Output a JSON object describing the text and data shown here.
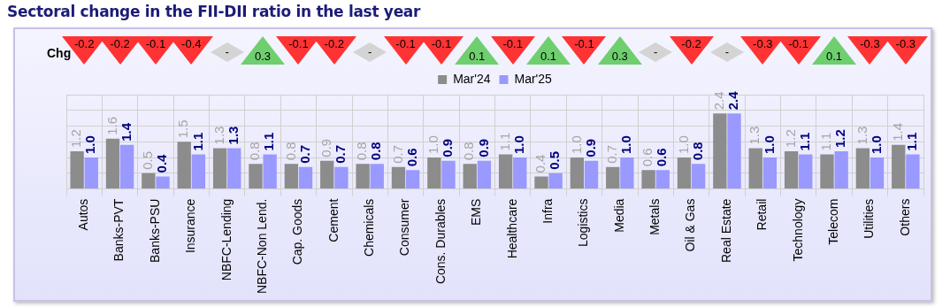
{
  "chart_data": {
    "type": "bar",
    "title": "Sectoral change in the FII-DII ratio in the last year",
    "categories": [
      "Autos",
      "Banks-PVT",
      "Banks-PSU",
      "Insurance",
      "NBFC-Lending",
      "NBFC-Non Lend.",
      "Cap. Goods",
      "Cement",
      "Chemicals",
      "Consumer",
      "Cons. Durables",
      "EMS",
      "Healthcare",
      "Infra",
      "Logistics",
      "Media",
      "Metals",
      "Oil & Gas",
      "Real Estate",
      "Retail",
      "Technology",
      "Telecom",
      "Utilities",
      "Others"
    ],
    "series": [
      {
        "name": "Mar'24",
        "color": "#8c8c8c",
        "values": [
          1.2,
          1.6,
          0.5,
          1.5,
          1.3,
          0.8,
          0.8,
          0.9,
          0.8,
          0.7,
          1.0,
          0.8,
          1.1,
          0.4,
          1.0,
          0.7,
          0.6,
          1.0,
          2.4,
          1.3,
          1.2,
          1.1,
          1.3,
          1.4
        ],
        "value_labels": [
          "1.2",
          "1.6",
          "0.5",
          "1.5",
          "1.3",
          "0.8",
          "0.8",
          "0.9",
          "0.8",
          "0.7",
          "1.0",
          "0.8",
          "1.1",
          "0.4",
          "1.0",
          "0.7",
          "0.6",
          "1.0",
          "2.4",
          "1.3",
          "1.2",
          "1.1",
          "1.3",
          "1.4"
        ]
      },
      {
        "name": "Mar'25",
        "color": "#9999ff",
        "values": [
          1.0,
          1.4,
          0.4,
          1.1,
          1.3,
          1.1,
          0.7,
          0.7,
          0.8,
          0.6,
          0.9,
          0.9,
          1.0,
          0.5,
          0.9,
          1.0,
          0.6,
          0.8,
          2.4,
          1.0,
          1.1,
          1.2,
          1.0,
          1.1
        ],
        "value_labels": [
          "1.0",
          "1.4",
          "0.4",
          "1.1",
          "1.3",
          "1.1",
          "0.7",
          "0.7",
          "0.8",
          "0.6",
          "0.9",
          "0.9",
          "1.0",
          "0.5",
          "0.9",
          "1.0",
          "0.6",
          "0.8",
          "2.4",
          "1.0",
          "1.1",
          "1.2",
          "1.0",
          "1.1"
        ]
      }
    ],
    "annotations": [
      "Chg",
      "-0.2",
      "-0.2",
      "-0.1",
      "-0.4",
      "-",
      "0.3",
      "-0.1",
      "-0.2",
      "-",
      "-0.1",
      "-0.1",
      "0.1",
      "-0.1",
      "0.1",
      "-0.1",
      "0.3",
      "-",
      "-0.2",
      "-",
      "-0.3",
      "-0.1",
      "0.1",
      "-0.3",
      "-0.3"
    ],
    "grid": true,
    "legend": "top"
  }
}
